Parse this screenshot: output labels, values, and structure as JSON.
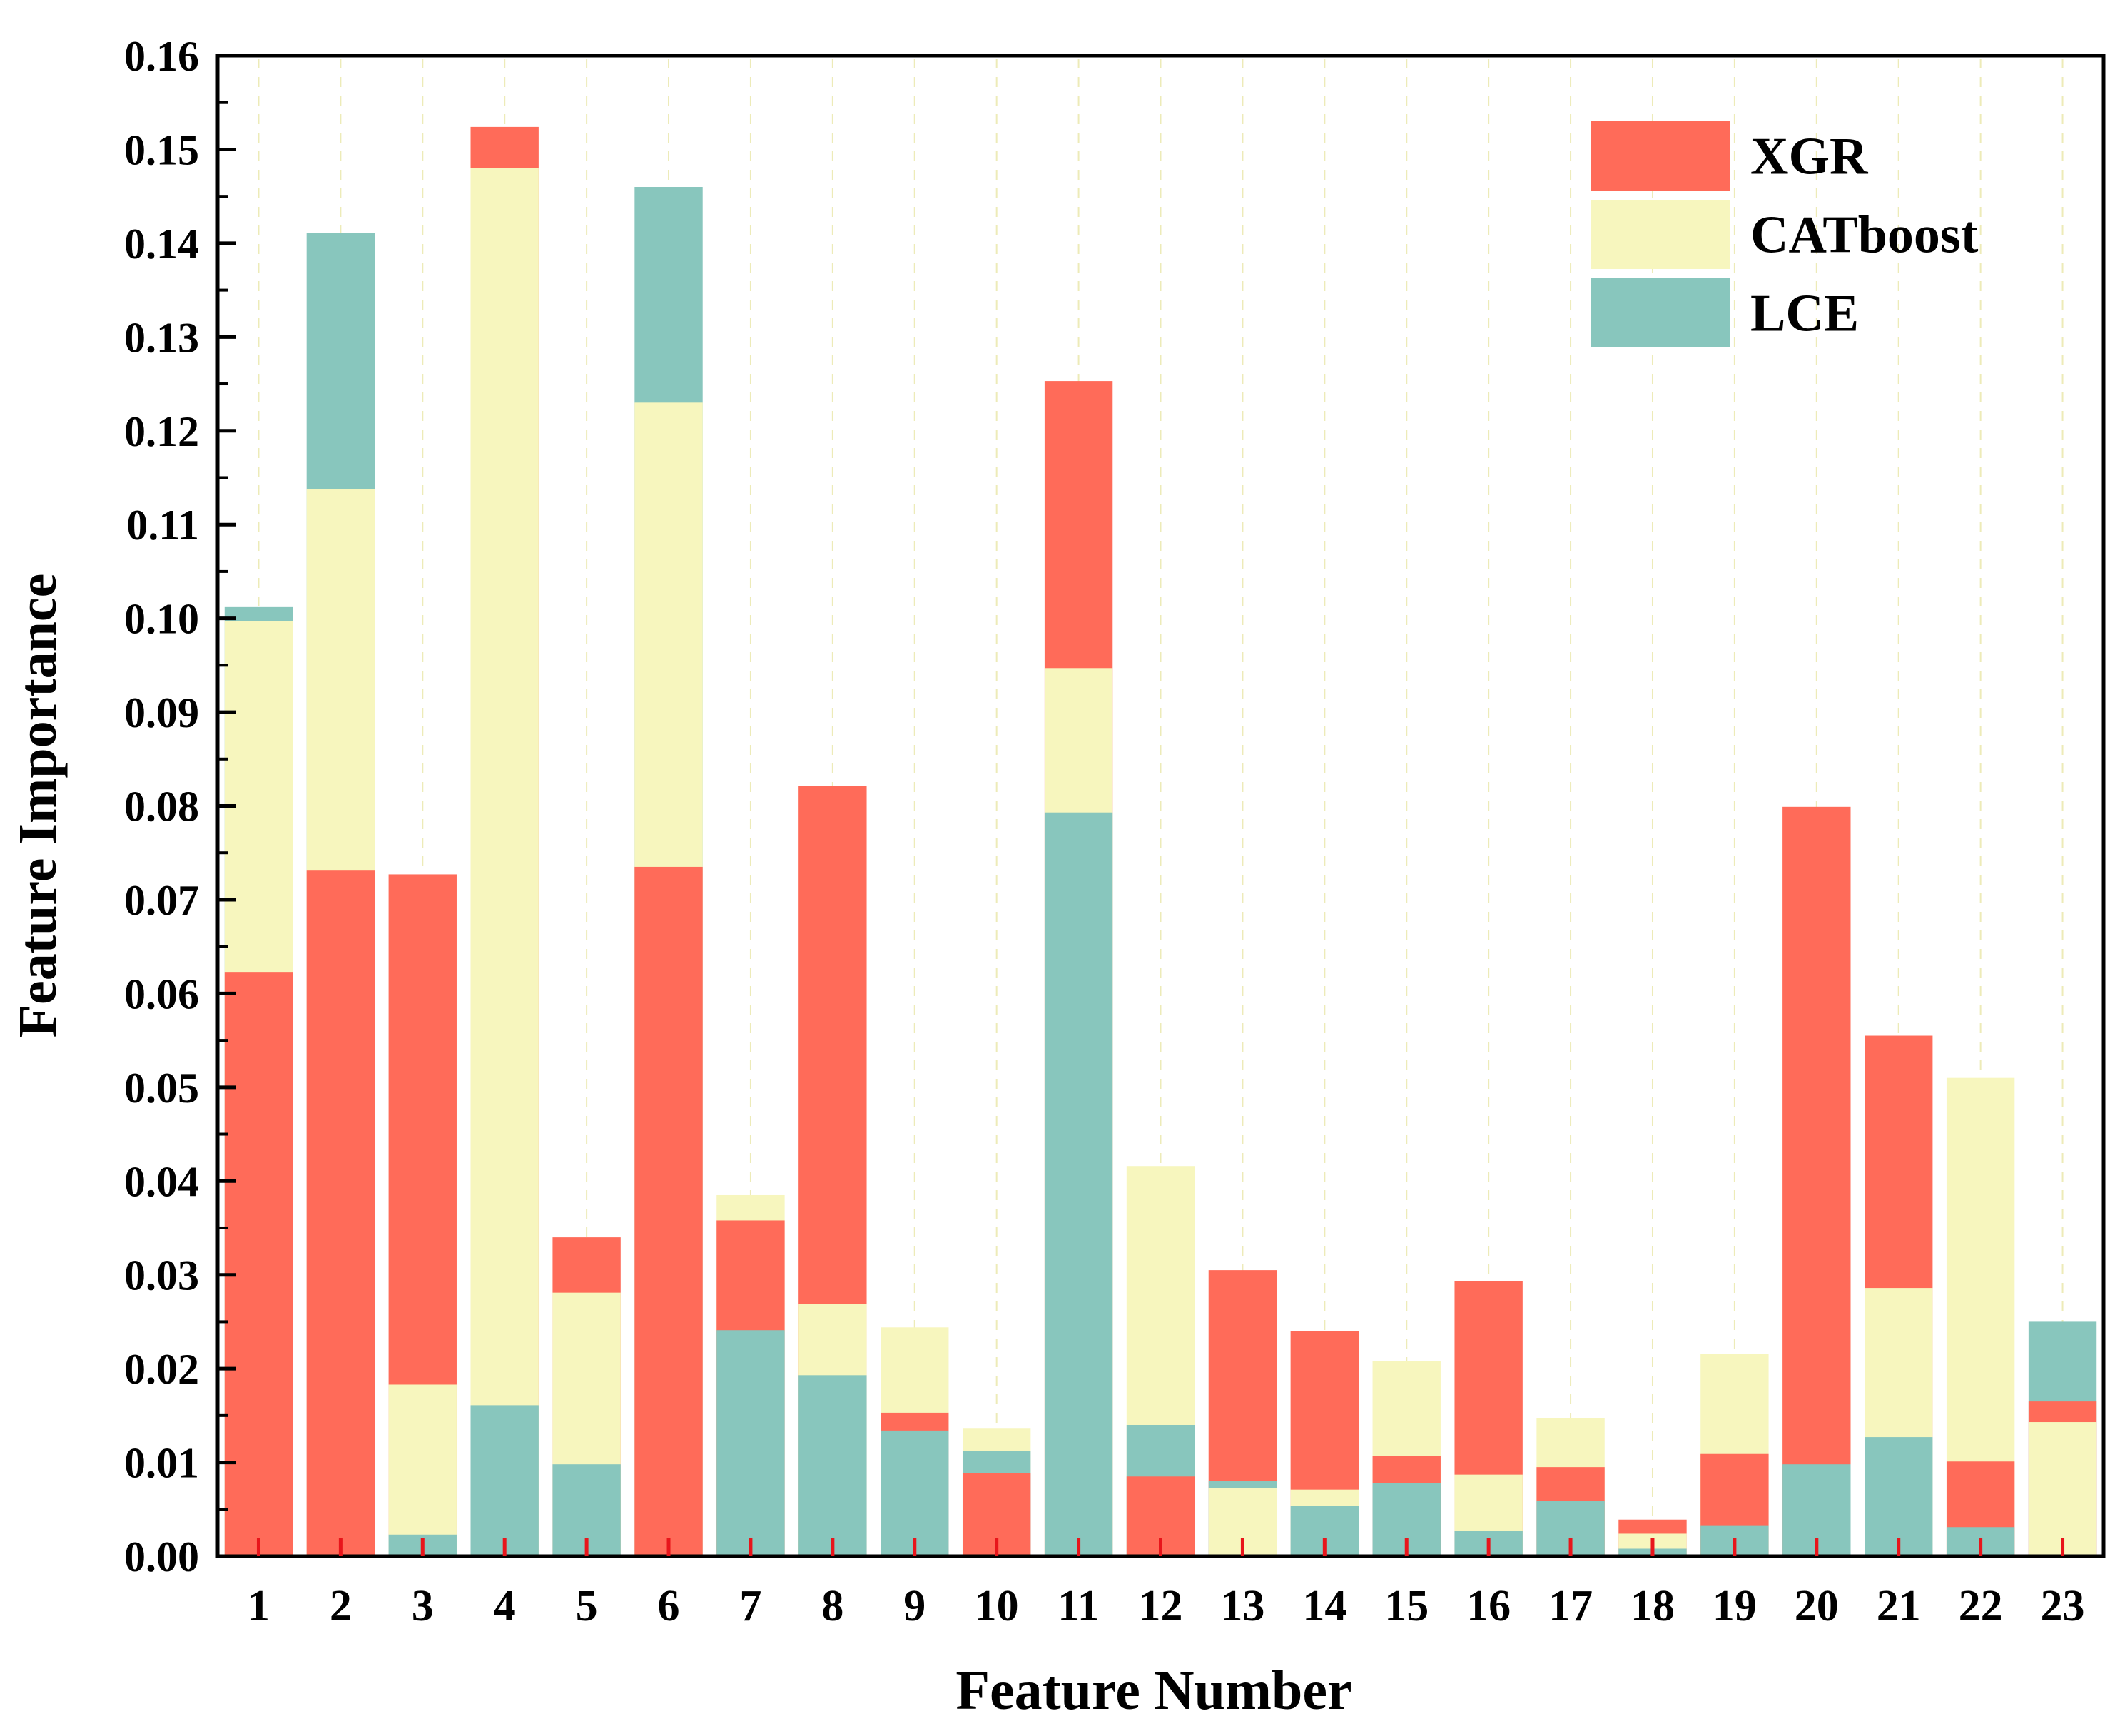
{
  "chart_data": {
    "type": "bar",
    "stacked": "overlay",
    "title": "",
    "xlabel": "Feature Number",
    "ylabel": "Feature Importance",
    "ylim": [
      0,
      0.16
    ],
    "ytick_step": 0.01,
    "categories": [
      "1",
      "2",
      "3",
      "4",
      "5",
      "6",
      "7",
      "8",
      "9",
      "10",
      "11",
      "12",
      "13",
      "14",
      "15",
      "16",
      "17",
      "18",
      "19",
      "20",
      "21",
      "22",
      "23"
    ],
    "grid": "vertical dashed",
    "legend_position": "top-right",
    "series": [
      {
        "name": "XGR",
        "color": "#FF6B59",
        "values": [
          0.0623,
          0.0731,
          0.0727,
          0.1524,
          0.034,
          0.0735,
          0.0358,
          0.0821,
          0.0153,
          0.0089,
          0.1253,
          0.0085,
          0.0305,
          0.024,
          0.0107,
          0.0293,
          0.0095,
          0.0039,
          0.0109,
          0.0799,
          0.0555,
          0.0101,
          0.0165
        ]
      },
      {
        "name": "CATboost",
        "color": "#F7F6BE",
        "values": [
          0.0997,
          0.1138,
          0.0183,
          0.148,
          0.0281,
          0.123,
          0.0385,
          0.0269,
          0.0244,
          0.0136,
          0.0947,
          0.0416,
          0.0073,
          0.0071,
          0.0208,
          0.0087,
          0.0147,
          0.0024,
          0.0216,
          0.0,
          0.0286,
          0.051,
          0.0143
        ]
      },
      {
        "name": "LCE",
        "color": "#88C6BD",
        "values": [
          0.1012,
          0.1411,
          0.0023,
          0.0161,
          0.0098,
          0.146,
          0.0241,
          0.0193,
          0.0134,
          0.0112,
          0.0793,
          0.014,
          0.008,
          0.0054,
          0.0078,
          0.0027,
          0.0059,
          0.0008,
          0.0033,
          0.0098,
          0.0127,
          0.0031,
          0.025
        ]
      }
    ]
  }
}
